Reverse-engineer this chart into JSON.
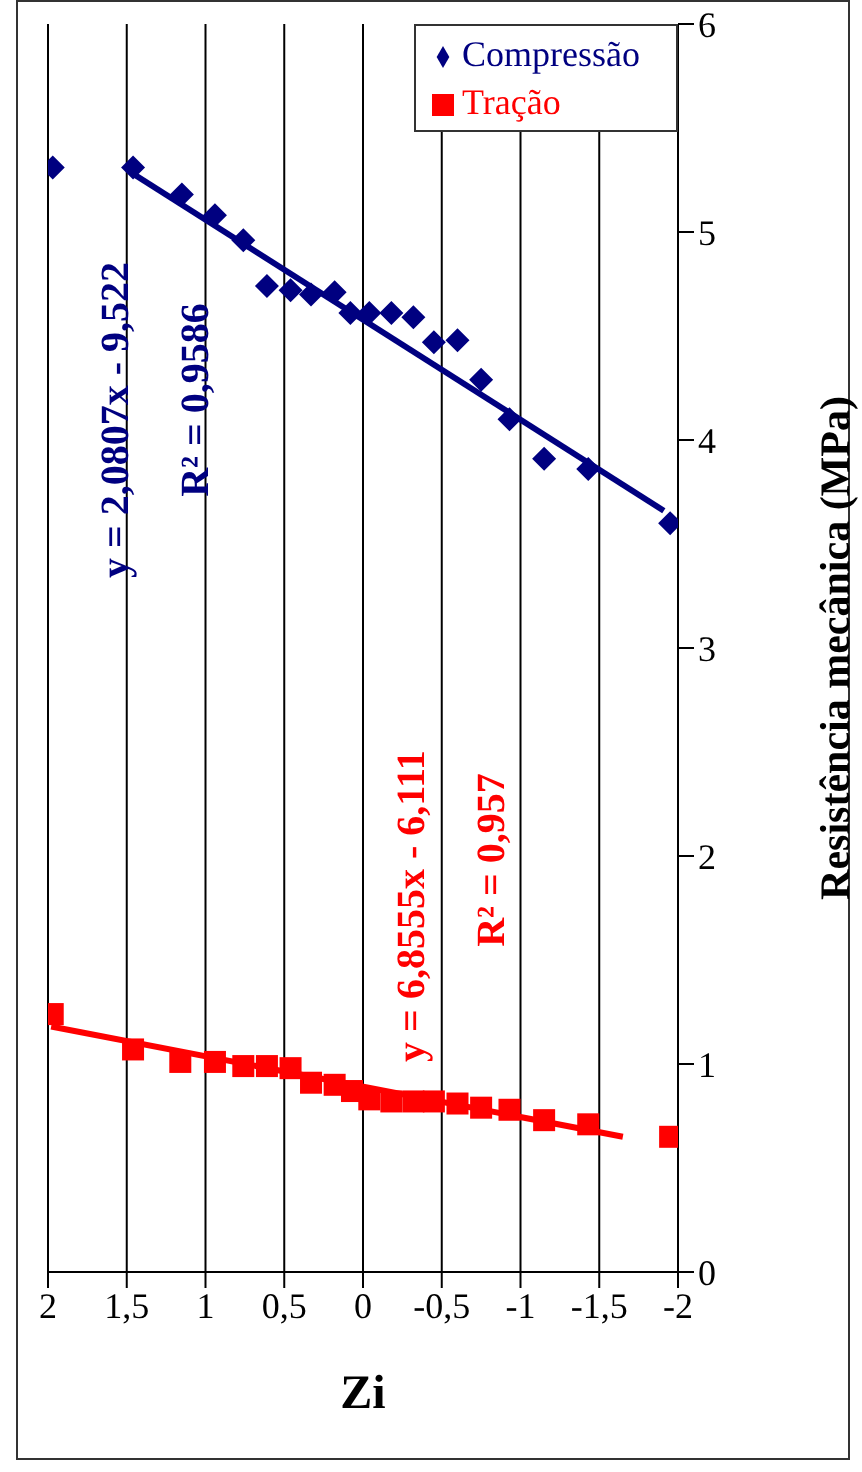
{
  "chart_data": {
    "type": "scatter",
    "xlabel": "Zi",
    "ylabel": "Resistência mecânica (MPa)",
    "xlim": [
      2,
      -2
    ],
    "xticks": [
      2,
      {
        "value": 1.5,
        "label": "1,5"
      },
      1,
      {
        "value": 0.5,
        "label": "0,5"
      },
      0,
      {
        "value": -0.5,
        "label": "-0,5"
      },
      -1,
      {
        "value": -1.5,
        "label": "-1,5"
      },
      -2
    ],
    "ylim": [
      0,
      6
    ],
    "yticks": [
      0,
      1,
      2,
      3,
      4,
      5,
      6
    ],
    "grid": "x",
    "legend": "top right",
    "series": [
      {
        "name": "Compressão",
        "color": "#000080",
        "marker": "diamond",
        "x": [
          1.97,
          1.46,
          1.15,
          0.94,
          0.76,
          0.61,
          0.46,
          0.33,
          0.18,
          0.08,
          -0.04,
          -0.18,
          -0.32,
          -0.45,
          -0.6,
          -0.75,
          -0.93,
          -1.15,
          -1.43,
          -1.95
        ],
        "values": [
          5.31,
          5.31,
          5.18,
          5.08,
          4.96,
          4.74,
          4.72,
          4.7,
          4.71,
          4.61,
          4.61,
          4.61,
          4.59,
          4.47,
          4.48,
          4.29,
          4.1,
          3.91,
          3.86,
          3.6
        ]
      },
      {
        "name": "Tração",
        "color": "#ff0000",
        "marker": "square",
        "x": [
          1.97,
          1.46,
          1.16,
          0.94,
          0.76,
          0.61,
          0.46,
          0.33,
          0.18,
          0.07,
          -0.04,
          -0.18,
          -0.32,
          -0.45,
          -0.6,
          -0.75,
          -0.93,
          -1.15,
          -1.43,
          -1.95
        ],
        "values": [
          1.24,
          1.07,
          1.01,
          1.01,
          0.99,
          0.99,
          0.98,
          0.91,
          0.9,
          0.87,
          0.83,
          0.82,
          0.82,
          0.82,
          0.81,
          0.79,
          0.78,
          0.73,
          0.71,
          0.65
        ]
      },
      {
        "type": "line",
        "color": "#000080",
        "x": [
          1.46,
          -1.91
        ],
        "values": [
          5.28,
          3.66
        ]
      },
      {
        "type": "line",
        "color": "#ff0000",
        "x": [
          1.98,
          -1.65
        ],
        "values": [
          1.18,
          0.65
        ]
      }
    ],
    "annotations": [
      "y = 2,0807x - 9,522",
      "R² = 0,9586",
      "y = 6,8555x - 6,111",
      "R² = 0,957"
    ]
  }
}
